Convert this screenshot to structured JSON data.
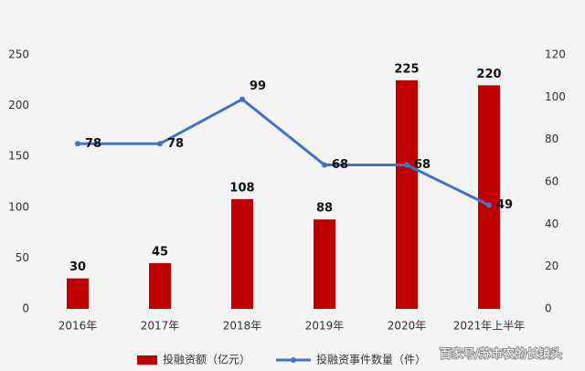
{
  "chart_data": {
    "type": "bar-line",
    "categories": [
      "2016年",
      "2017年",
      "2018年",
      "2019年",
      "2020年",
      "2021年上半年"
    ],
    "series": [
      {
        "name": "投融资额（亿元）",
        "type": "bar",
        "color": "#c00000",
        "values": [
          30,
          45,
          108,
          88,
          225,
          220
        ]
      },
      {
        "name": "投融资事件数量（件）",
        "type": "line",
        "axis": "y2",
        "color": "#4472c4",
        "values": [
          78,
          78,
          99,
          68,
          68,
          49
        ]
      }
    ],
    "ylim": [
      0,
      250
    ],
    "yticks": [
      0,
      50,
      100,
      150,
      200,
      250
    ],
    "y2lim": [
      0,
      120
    ],
    "y2ticks": [
      0,
      20,
      40,
      60,
      80,
      100,
      120
    ],
    "watermark": "百家号/苏市农的长镇头"
  }
}
